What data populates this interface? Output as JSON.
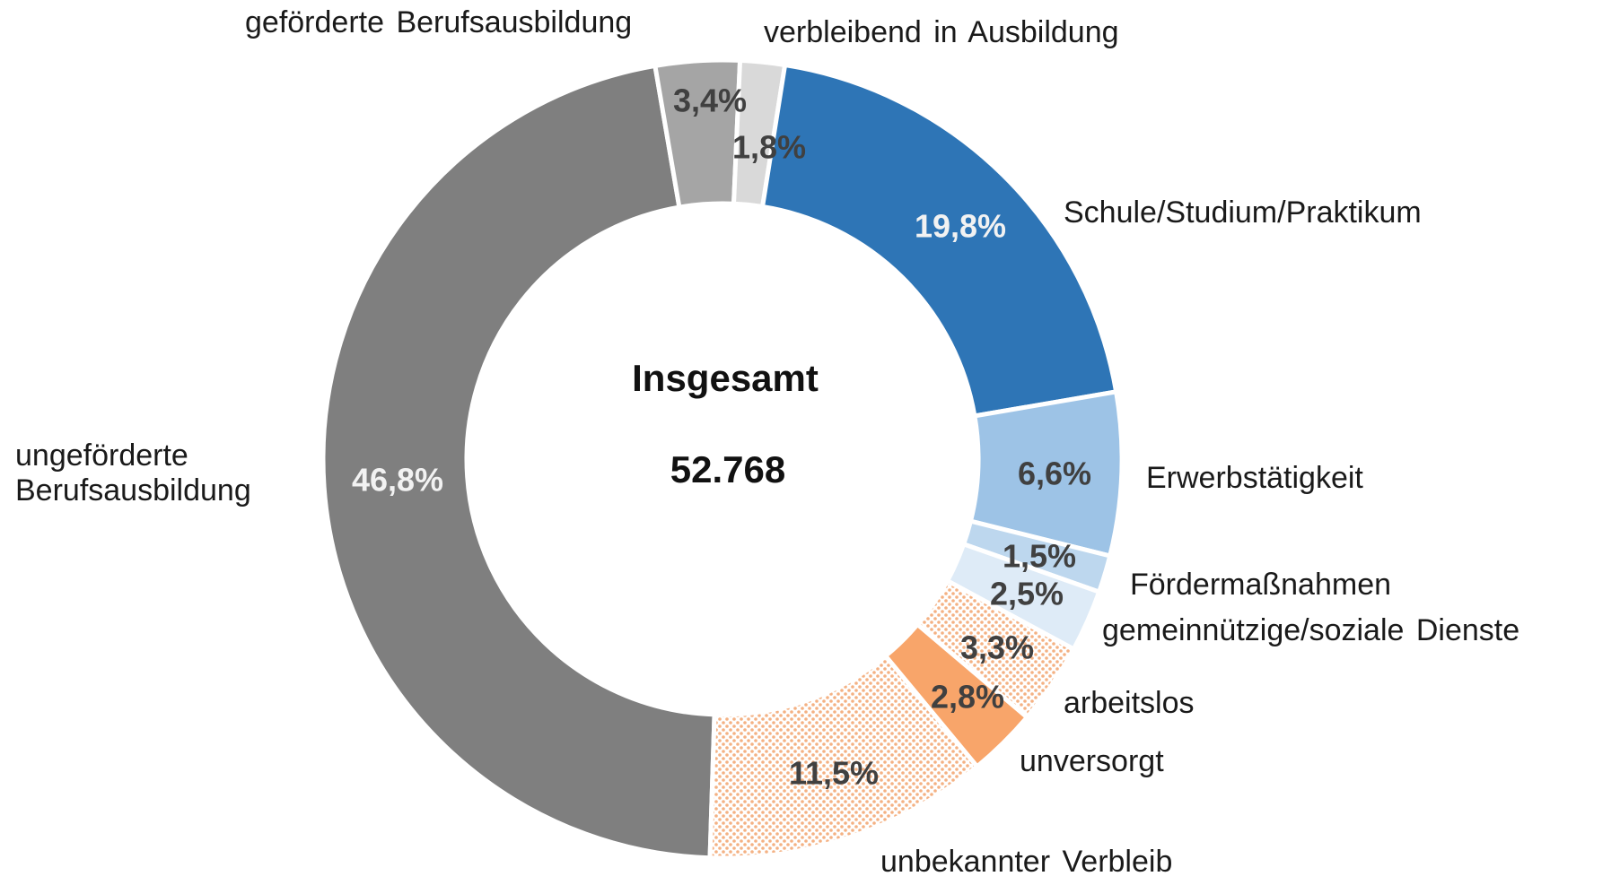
{
  "chart_data": {
    "type": "donut",
    "categories": [
      "ungeförderte Berufsausbildung",
      "geförderte Berufsausbildung",
      "verbleibend in Ausbildung",
      "Schule/Studium/Praktikum",
      "Erwerbstätigkeit",
      "Fördermaßnahmen",
      "gemeinnützige/soziale Dienste",
      "arbeitslos",
      "unversorgt",
      "unbekannter Verbleib"
    ],
    "values": [
      46.8,
      3.4,
      1.8,
      19.8,
      6.6,
      1.5,
      2.5,
      3.3,
      2.8,
      11.5
    ],
    "value_labels": [
      "46,8%",
      "3,4%",
      "1,8%",
      "19,8%",
      "6,6%",
      "1,5%",
      "2,5%",
      "3,3%",
      "2,8%",
      "11,5%"
    ],
    "colors": [
      "#7f7f7f",
      "#a5a5a5",
      "#d9d9d9",
      "#2e75b6",
      "#9dc3e6",
      "#bdd7ee",
      "#deebf7",
      "#f4b183",
      "#f8a56a",
      "#f4b183"
    ],
    "patterns": [
      "solid",
      "solid",
      "solid",
      "solid",
      "solid",
      "solid",
      "solid",
      "dots",
      "solid",
      "dots"
    ],
    "center_title": "Insgesamt",
    "total": 52768,
    "total_label": "52.768"
  }
}
